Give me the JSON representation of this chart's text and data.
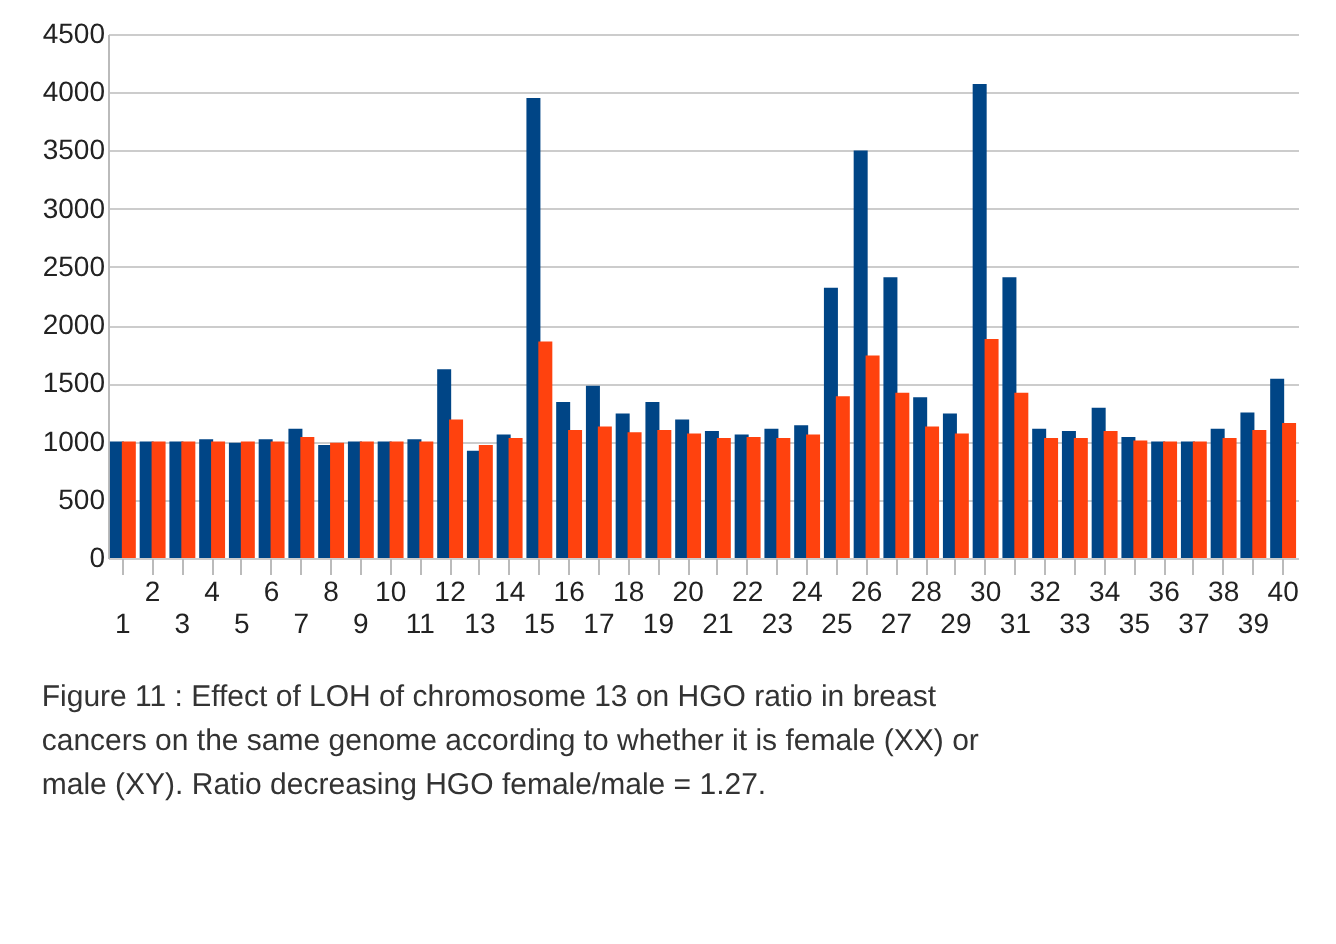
{
  "chart_data": {
    "type": "bar",
    "categories": [
      "1",
      "2",
      "3",
      "4",
      "5",
      "6",
      "7",
      "8",
      "9",
      "10",
      "11",
      "12",
      "13",
      "14",
      "15",
      "16",
      "17",
      "18",
      "19",
      "20",
      "21",
      "22",
      "23",
      "24",
      "25",
      "26",
      "27",
      "28",
      "29",
      "30",
      "31",
      "32",
      "33",
      "34",
      "35",
      "36",
      "37",
      "38",
      "39",
      "40"
    ],
    "series": [
      {
        "color": "#004586",
        "values": [
          1000,
          1000,
          1000,
          1020,
          990,
          1020,
          1110,
          970,
          1000,
          1000,
          1020,
          1620,
          920,
          1060,
          3950,
          1340,
          1480,
          1240,
          1340,
          1190,
          1090,
          1060,
          1110,
          1140,
          2320,
          3500,
          2410,
          1380,
          1240,
          4070,
          2410,
          1110,
          1090,
          1290,
          1040,
          1000,
          1000,
          1110,
          1250,
          1540
        ]
      },
      {
        "color": "#ff420e",
        "values": [
          1000,
          1000,
          1000,
          1000,
          1000,
          1000,
          1040,
          990,
          1000,
          1000,
          1000,
          1190,
          970,
          1030,
          1860,
          1100,
          1130,
          1080,
          1100,
          1070,
          1030,
          1040,
          1030,
          1060,
          1390,
          1740,
          1420,
          1130,
          1070,
          1880,
          1420,
          1030,
          1030,
          1090,
          1010,
          1000,
          1000,
          1030,
          1100,
          1160
        ]
      }
    ],
    "ylim": [
      0,
      4500
    ],
    "yticks": [
      0,
      500,
      1000,
      1500,
      2000,
      2500,
      3000,
      3500,
      4000,
      4500
    ],
    "grid": "y",
    "legend": false,
    "annotations": [
      "Figure 11 : Effect of LOH of chromosome 13 on HGO ratio in breast cancers on the same genome according to whether it is female (XX) or male (XY). Ratio decreasing HGO female/male = 1.27."
    ]
  }
}
